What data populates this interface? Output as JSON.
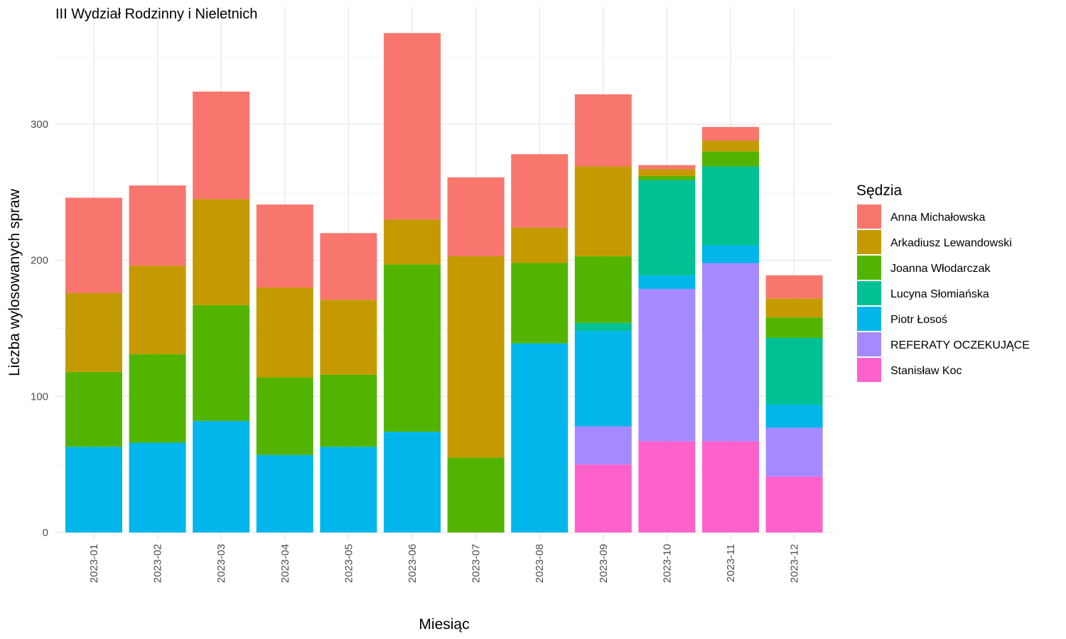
{
  "chart_data": {
    "type": "bar",
    "stacked": true,
    "title": "III Wydział Rodzinny i Nieletnich",
    "xlabel": "Miesiąc",
    "ylabel": "Liczba wylosowanych spraw",
    "ylim": [
      0,
      375
    ],
    "yticks": [
      0,
      100,
      200,
      300
    ],
    "grid": true,
    "legend_title": "Sędzia",
    "legend_position": "right",
    "categories": [
      "2023-01",
      "2023-02",
      "2023-03",
      "2023-04",
      "2023-05",
      "2023-06",
      "2023-07",
      "2023-08",
      "2023-09",
      "2023-10",
      "2023-11",
      "2023-12"
    ],
    "series": [
      {
        "name": "Stanisław Koc",
        "color": "#FF61CC",
        "values": [
          0,
          0,
          0,
          0,
          0,
          0,
          0,
          0,
          50,
          67,
          67,
          41
        ]
      },
      {
        "name": "REFERATY OCZEKUJĄCE",
        "color": "#A58AFF",
        "values": [
          0,
          0,
          0,
          0,
          0,
          0,
          0,
          0,
          28,
          112,
          131,
          36
        ]
      },
      {
        "name": "Piotr Łosoś",
        "color": "#00B6EB",
        "values": [
          63,
          66,
          82,
          57,
          63,
          74,
          0,
          139,
          70,
          10,
          13,
          17
        ]
      },
      {
        "name": "Lucyna Słomiańska",
        "color": "#00C094",
        "values": [
          0,
          0,
          0,
          0,
          0,
          0,
          0,
          0,
          6,
          70,
          58,
          49
        ]
      },
      {
        "name": "Joanna Włodarczak",
        "color": "#53B400",
        "values": [
          55,
          65,
          85,
          57,
          53,
          123,
          55,
          59,
          49,
          3,
          11,
          15
        ]
      },
      {
        "name": "Arkadiusz Lewandowski",
        "color": "#C49A00",
        "values": [
          58,
          65,
          78,
          66,
          55,
          33,
          148,
          26,
          66,
          5,
          8,
          14
        ]
      },
      {
        "name": "Anna Michałowska",
        "color": "#F8766D",
        "values": [
          70,
          59,
          79,
          61,
          49,
          137,
          58,
          54,
          53,
          3,
          10,
          17
        ]
      }
    ],
    "legend_order": [
      "Anna Michałowska",
      "Arkadiusz Lewandowski",
      "Joanna Włodarczak",
      "Lucyna Słomiańska",
      "Piotr Łosoś",
      "REFERATY OCZEKUJĄCE",
      "Stanisław Koc"
    ]
  }
}
